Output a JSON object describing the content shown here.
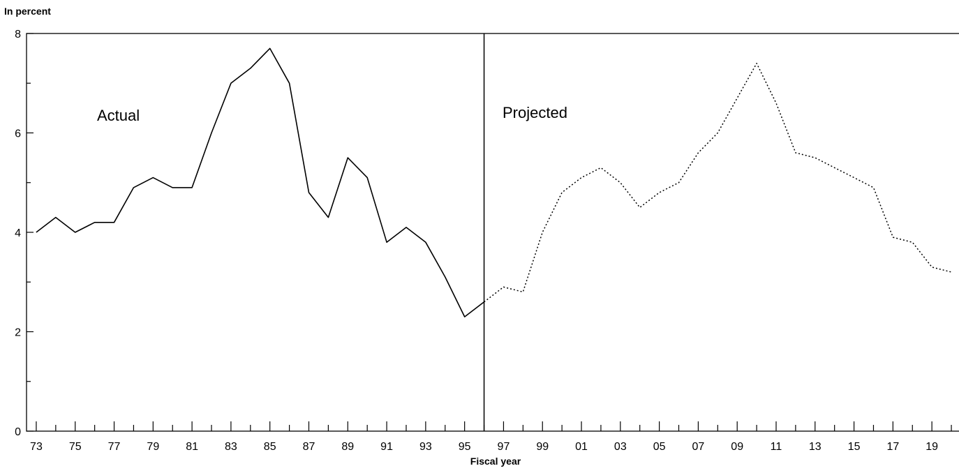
{
  "chart_data": {
    "type": "line",
    "ylabel": "In percent",
    "xlabel": "Fiscal year",
    "ylim": [
      0,
      8
    ],
    "y_ticks": [
      0,
      2,
      4,
      6,
      8
    ],
    "x_tick_labels": [
      "73",
      "75",
      "77",
      "79",
      "81",
      "83",
      "85",
      "87",
      "89",
      "91",
      "93",
      "95",
      "97",
      "99",
      "01",
      "03",
      "05",
      "07",
      "09",
      "11",
      "13",
      "15",
      "17",
      "19"
    ],
    "grid": false,
    "divider_year": 1996,
    "annotations": {
      "actual": "Actual",
      "projected": "Projected"
    },
    "series": [
      {
        "style": "solid",
        "x": [
          1973,
          1974,
          1975,
          1976,
          1977,
          1978,
          1979,
          1980,
          1981,
          1982,
          1983,
          1984,
          1985,
          1986,
          1987,
          1988,
          1989,
          1990,
          1991,
          1992,
          1993,
          1994,
          1995,
          1996
        ],
        "values": [
          4.0,
          4.3,
          4.0,
          4.2,
          4.2,
          4.9,
          5.1,
          4.9,
          4.9,
          6.0,
          7.0,
          7.3,
          7.7,
          7.0,
          4.8,
          4.3,
          5.5,
          5.1,
          3.8,
          4.1,
          3.8,
          3.1,
          2.3,
          2.6
        ]
      },
      {
        "style": "dotted",
        "x": [
          1996,
          1997,
          1998,
          1999,
          2000,
          2001,
          2002,
          2003,
          2004,
          2005,
          2006,
          2007,
          2008,
          2009,
          2010,
          2011,
          2012,
          2013,
          2014,
          2015,
          2016,
          2017,
          2018,
          2019,
          2020
        ],
        "values": [
          2.6,
          2.9,
          2.8,
          4.0,
          4.8,
          5.1,
          5.3,
          5.0,
          4.5,
          4.8,
          5.0,
          5.6,
          6.0,
          6.7,
          7.4,
          6.6,
          5.6,
          5.5,
          5.3,
          5.1,
          4.9,
          3.9,
          3.8,
          3.3,
          3.2
        ]
      }
    ]
  }
}
